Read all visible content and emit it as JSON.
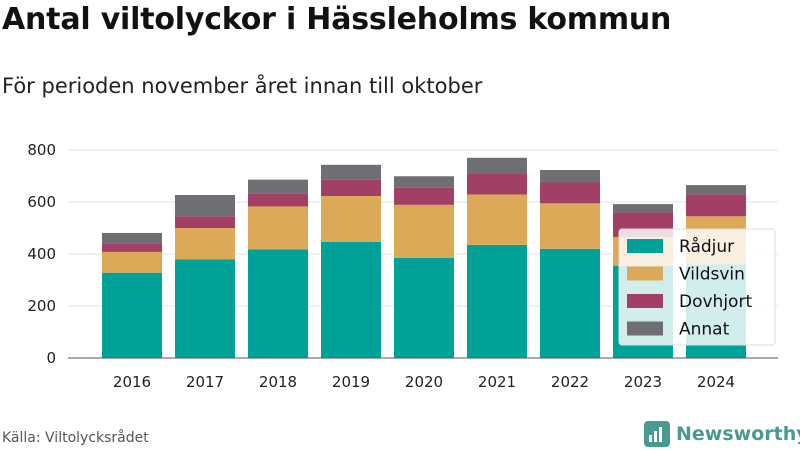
{
  "header": {
    "title": "Antal viltolyckor i Hässleholms kommun",
    "subtitle": "För perioden november året innan till oktober"
  },
  "footer": {
    "source": "Källa: Viltolycksrådet",
    "brand": "Newsworthy"
  },
  "colors": {
    "Rådjur": "#00a298",
    "Vildsvin": "#dba958",
    "Dovhjort": "#a23f64",
    "Annat": "#6e6e73",
    "brand": "#4a9a91"
  },
  "chart_data": {
    "type": "bar",
    "stacked": true,
    "categories": [
      "2016",
      "2017",
      "2018",
      "2019",
      "2020",
      "2021",
      "2022",
      "2023",
      "2024"
    ],
    "series": [
      {
        "name": "Rådjur",
        "values": [
          328,
          380,
          418,
          447,
          385,
          435,
          420,
          355,
          360
        ]
      },
      {
        "name": "Vildsvin",
        "values": [
          80,
          120,
          165,
          176,
          204,
          194,
          175,
          110,
          185
        ]
      },
      {
        "name": "Dovhjort",
        "values": [
          33,
          45,
          48,
          63,
          66,
          81,
          80,
          95,
          85
        ]
      },
      {
        "name": "Annat",
        "values": [
          40,
          82,
          55,
          57,
          44,
          60,
          48,
          32,
          35
        ]
      }
    ],
    "ylim": [
      0,
      800
    ],
    "yticks": [
      0,
      200,
      400,
      600,
      800
    ],
    "grid": true,
    "legend_position": "right"
  }
}
